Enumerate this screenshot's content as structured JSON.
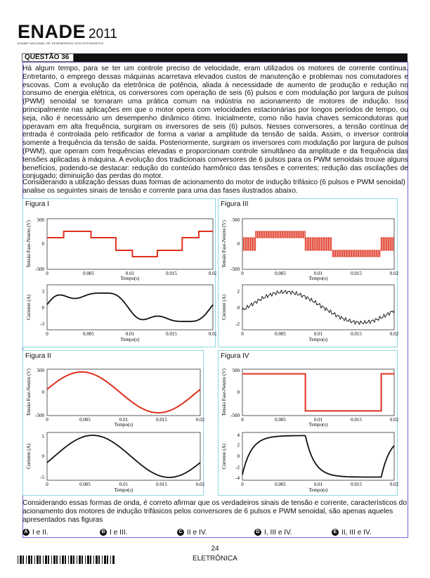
{
  "header": {
    "brand": "ENADE",
    "year": "2011",
    "subtitle": "EXAME NACIONAL DE DESEMPENHO DOS ESTUDANTES"
  },
  "question": {
    "label": "QUESTÃO 36"
  },
  "stem": "Há algum tempo, para se ter um controle preciso de velocidade, eram utilizados os motores de corrente contínua. Entretanto, o emprego dessas máquinas acarretava elevados custos de manutenção e problemas nos comutadores e escovas. Com a evolução da eletrônica de potência, aliada à necessidade de aumento de produção e redução no consumo de energia elétrica, os conversores com operação de seis (6) pulsos e com modulação por largura de pulsos (PWM) senoidal se tornaram uma prática comum na indústria no acionamento de motores de indução. Isso principalmente nas aplicações em que o motor opera com velocidades estacionárias por longos períodos de tempo, ou seja, não é necessário um desempenho dinâmico ótimo. Inicialmente, como não havia chaves semicondutoras que operavam em alta frequência, surgiram os inversores de seis (6) pulsos. Nesses conversores, a tensão contínua de entrada é controlada pelo retificador de forma a variar a amplitude da tensão de saída. Assim, o inversor controla somente a frequência da tensão de saída. Posteriormente, surgiram os inversores com modulação por largura de pulsos (PWM), que operam com frequências elevadas e proporcionam controle simultâneo da amplitude e da frequência das tensões aplicadas à máquina. A evolução dos tradicionais conversores de 6 pulsos para os PWM senoidais trouxe alguns benefícios, podendo-se destacar: redução do conteúdo harmônico das tensões e correntes; redução das oscilações de conjugado; diminuição das perdas do motor.",
  "prompt": "Considerando a utilização dessas duas formas de acionamento do motor de indução trifásico (6 pulsos e PWM senoidal) analise os seguintes sinais de tensão e corrente para uma das fases ilustrados abaixo.",
  "figures": {
    "f1": {
      "label": "Figura I",
      "v_ylabel": "Tensão Fase-Neutro (V)",
      "i_ylabel": "Corrente (A)",
      "xlabel": "Tempo(s)",
      "v_ticks": [
        "500",
        "0",
        "-500"
      ],
      "i_ticks": [
        "3",
        "0",
        "-3"
      ],
      "x_ticks": [
        "0",
        "0.005",
        "0.01",
        "0.015",
        "0.02"
      ]
    },
    "f2": {
      "label": "Figura II",
      "v_ylabel": "Tensão Fase-Neutro (V)",
      "i_ylabel": "Corrente (A)",
      "xlabel": "Tempo(s)",
      "v_ticks": [
        "500",
        "0",
        "-500"
      ],
      "i_ticks": [
        "5",
        "0",
        "-5"
      ],
      "x_ticks": [
        "0",
        "0.005",
        "0.01",
        "0.015",
        "0.02"
      ]
    },
    "f3": {
      "label": "Figura III",
      "v_ylabel": "Tensão Fase-Neutro (V)",
      "i_ylabel": "Corrente (A)",
      "xlabel": "Tempo(s)",
      "v_ticks": [
        "500",
        "0",
        "-500"
      ],
      "i_ticks": [
        "2",
        "0",
        "-2"
      ],
      "x_ticks": [
        "0",
        "0.005",
        "0.01",
        "0.015",
        "0.02"
      ]
    },
    "f4": {
      "label": "Figura IV",
      "v_ylabel": "Tensão Fase-Neutro (V)",
      "i_ylabel": "Corrente (A)",
      "xlabel": "Tempo(s)",
      "v_ticks": [
        "500",
        "0",
        "-500"
      ],
      "i_ticks": [
        "4",
        "2",
        "0",
        "-2",
        "-4"
      ],
      "x_ticks": [
        "0",
        "0.005",
        "0.01",
        "0.015",
        "0.02"
      ]
    }
  },
  "chart_data": [
    {
      "type": "line",
      "figure": "Figura I",
      "ylabel": "Tensão Fase-Neutro (V)",
      "xlabel": "Tempo(s)",
      "xlim": [
        0,
        0.02
      ],
      "ylim": [
        -500,
        500
      ],
      "series": [
        {
          "x": [
            0,
            0.002,
            0.002,
            0.0053,
            0.0053,
            0.0083,
            0.0083,
            0.0103,
            0.0103,
            0.0133,
            0.0133,
            0.0163,
            0.0163,
            0.0183,
            0.0183,
            0.02
          ],
          "values": [
            125,
            125,
            250,
            250,
            125,
            125,
            -125,
            -125,
            -250,
            -250,
            -125,
            -125,
            125,
            125,
            250,
            250
          ]
        }
      ]
    },
    {
      "type": "line",
      "figure": "Figura I",
      "ylabel": "Corrente (A)",
      "xlabel": "Tempo(s)",
      "xlim": [
        0,
        0.02
      ],
      "ylim": [
        -3,
        3
      ]
    },
    {
      "type": "line",
      "figure": "Figura II",
      "ylabel": "Tensão Fase-Neutro (V)",
      "xlabel": "Tempo(s)",
      "xlim": [
        0,
        0.02
      ],
      "ylim": [
        -500,
        500
      ]
    },
    {
      "type": "line",
      "figure": "Figura II",
      "ylabel": "Corrente (A)",
      "xlabel": "Tempo(s)",
      "xlim": [
        0,
        0.02
      ],
      "ylim": [
        -5,
        5
      ]
    },
    {
      "type": "line",
      "figure": "Figura III",
      "ylabel": "Tensão Fase-Neutro (V)",
      "xlabel": "Tempo(s)",
      "xlim": [
        0,
        0.02
      ],
      "ylim": [
        -500,
        500
      ]
    },
    {
      "type": "line",
      "figure": "Figura III",
      "ylabel": "Corrente (A)",
      "xlabel": "Tempo(s)",
      "xlim": [
        0,
        0.02
      ],
      "ylim": [
        -2,
        2
      ]
    },
    {
      "type": "line",
      "figure": "Figura IV",
      "ylabel": "Tensão Fase-Neutro (V)",
      "xlabel": "Tempo(s)",
      "xlim": [
        0,
        0.02
      ],
      "ylim": [
        -500,
        500
      ],
      "series": [
        {
          "x": [
            0,
            0.0083,
            0.0083,
            0.0183,
            0.0183,
            0.02
          ],
          "values": [
            400,
            400,
            -400,
            -400,
            400,
            400
          ]
        }
      ]
    },
    {
      "type": "line",
      "figure": "Figura IV",
      "ylabel": "Corrente (A)",
      "xlabel": "Tempo(s)",
      "xlim": [
        0,
        0.02
      ],
      "ylim": [
        -4,
        4
      ]
    }
  ],
  "closing": "Considerando essas formas de onda, é correto afirmar que os verdadeiros sinais de tensão e corrente, característicos do acionamento dos motores de indução trifásicos pelos conversores de 6 pulsos e PWM senoidal, são apenas aqueles apresentados nas figuras",
  "options": [
    {
      "letter": "A",
      "text": "I e II."
    },
    {
      "letter": "B",
      "text": "I e III."
    },
    {
      "letter": "C",
      "text": "II e IV."
    },
    {
      "letter": "D",
      "text": "I, III e IV."
    },
    {
      "letter": "E",
      "text": "II, III e IV."
    }
  ],
  "footer": {
    "page": "24",
    "course": "ELETRÔNICA"
  },
  "colors": {
    "wave_red": "#e0301e",
    "wave_black": "#111111",
    "panel_border": "#8fd7e0",
    "frame_border": "#6a6ad8"
  }
}
